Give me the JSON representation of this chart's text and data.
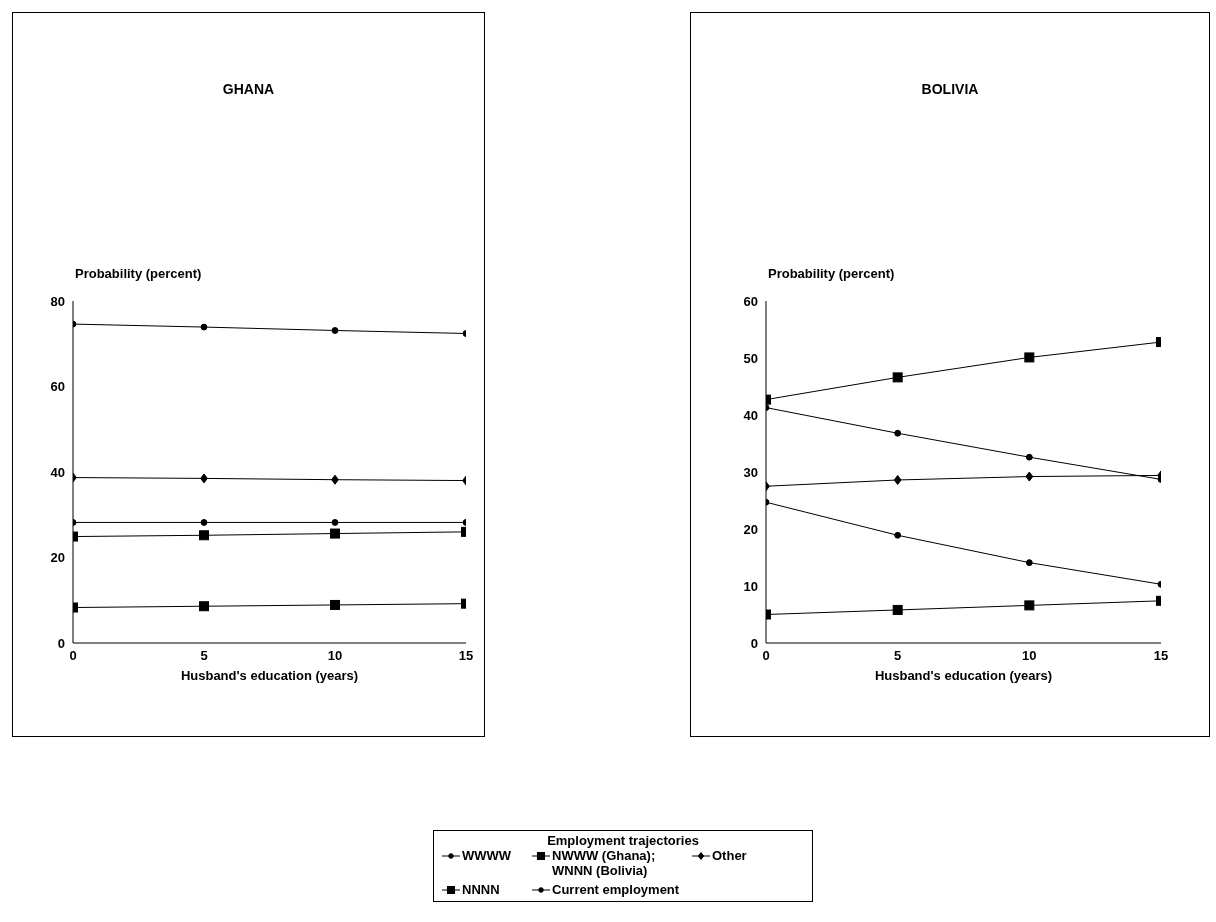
{
  "chart_data": [
    {
      "type": "line",
      "title": "GHANA",
      "xlabel": "Husband's education (years)",
      "ylabel": "Probability (percent)",
      "legend_title": "Employment trajectories",
      "legend": "bottom",
      "x": [
        0,
        5,
        10,
        15
      ],
      "xlim": [
        0,
        15
      ],
      "xticks": [
        0,
        5,
        10,
        15
      ],
      "ylim": [
        0,
        80
      ],
      "yticks": [
        0,
        20,
        40,
        60,
        80
      ],
      "grid": false,
      "series": [
        {
          "name": "WWWW",
          "color": "#000000",
          "marker": "circle",
          "values": [
            28.2,
            28.2,
            28.2,
            28.2
          ]
        },
        {
          "name": "NWWW (Ghana); WNNN (Bolivia)",
          "color": "#000000",
          "marker": "square",
          "values": [
            24.9,
            25.2,
            25.6,
            26.0
          ]
        },
        {
          "name": "Other",
          "color": "#000000",
          "marker": "diamond",
          "values": [
            38.7,
            38.5,
            38.2,
            38.0
          ]
        },
        {
          "name": "NNNN",
          "color": "#000000",
          "marker": "square",
          "values": [
            8.3,
            8.6,
            8.9,
            9.2
          ]
        },
        {
          "name": "Current employment",
          "color": "#000000",
          "marker": "circle",
          "values": [
            74.6,
            73.9,
            73.1,
            72.4
          ]
        }
      ]
    },
    {
      "type": "line",
      "title": "BOLIVIA",
      "xlabel": "Husband's education (years)",
      "ylabel": "Probability (percent)",
      "legend": false,
      "x": [
        0,
        5,
        10,
        15
      ],
      "xlim": [
        0,
        15
      ],
      "xticks": [
        0,
        5,
        10,
        15
      ],
      "ylim": [
        0,
        60
      ],
      "yticks": [
        0,
        10,
        20,
        30,
        40,
        50,
        60
      ],
      "grid": false,
      "series": [
        {
          "color": "#000000",
          "marker": "circle",
          "values": [
            24.7,
            18.9,
            14.1,
            10.3
          ]
        },
        {
          "color": "#000000",
          "marker": "square",
          "values": [
            5.0,
            5.8,
            6.6,
            7.4
          ]
        },
        {
          "color": "#000000",
          "marker": "diamond",
          "values": [
            27.5,
            28.6,
            29.2,
            29.4
          ]
        },
        {
          "color": "#000000",
          "marker": "square",
          "values": [
            42.7,
            46.6,
            50.1,
            52.8
          ]
        },
        {
          "color": "#000000",
          "marker": "circle",
          "values": [
            41.3,
            36.8,
            32.6,
            28.7
          ]
        }
      ]
    }
  ]
}
